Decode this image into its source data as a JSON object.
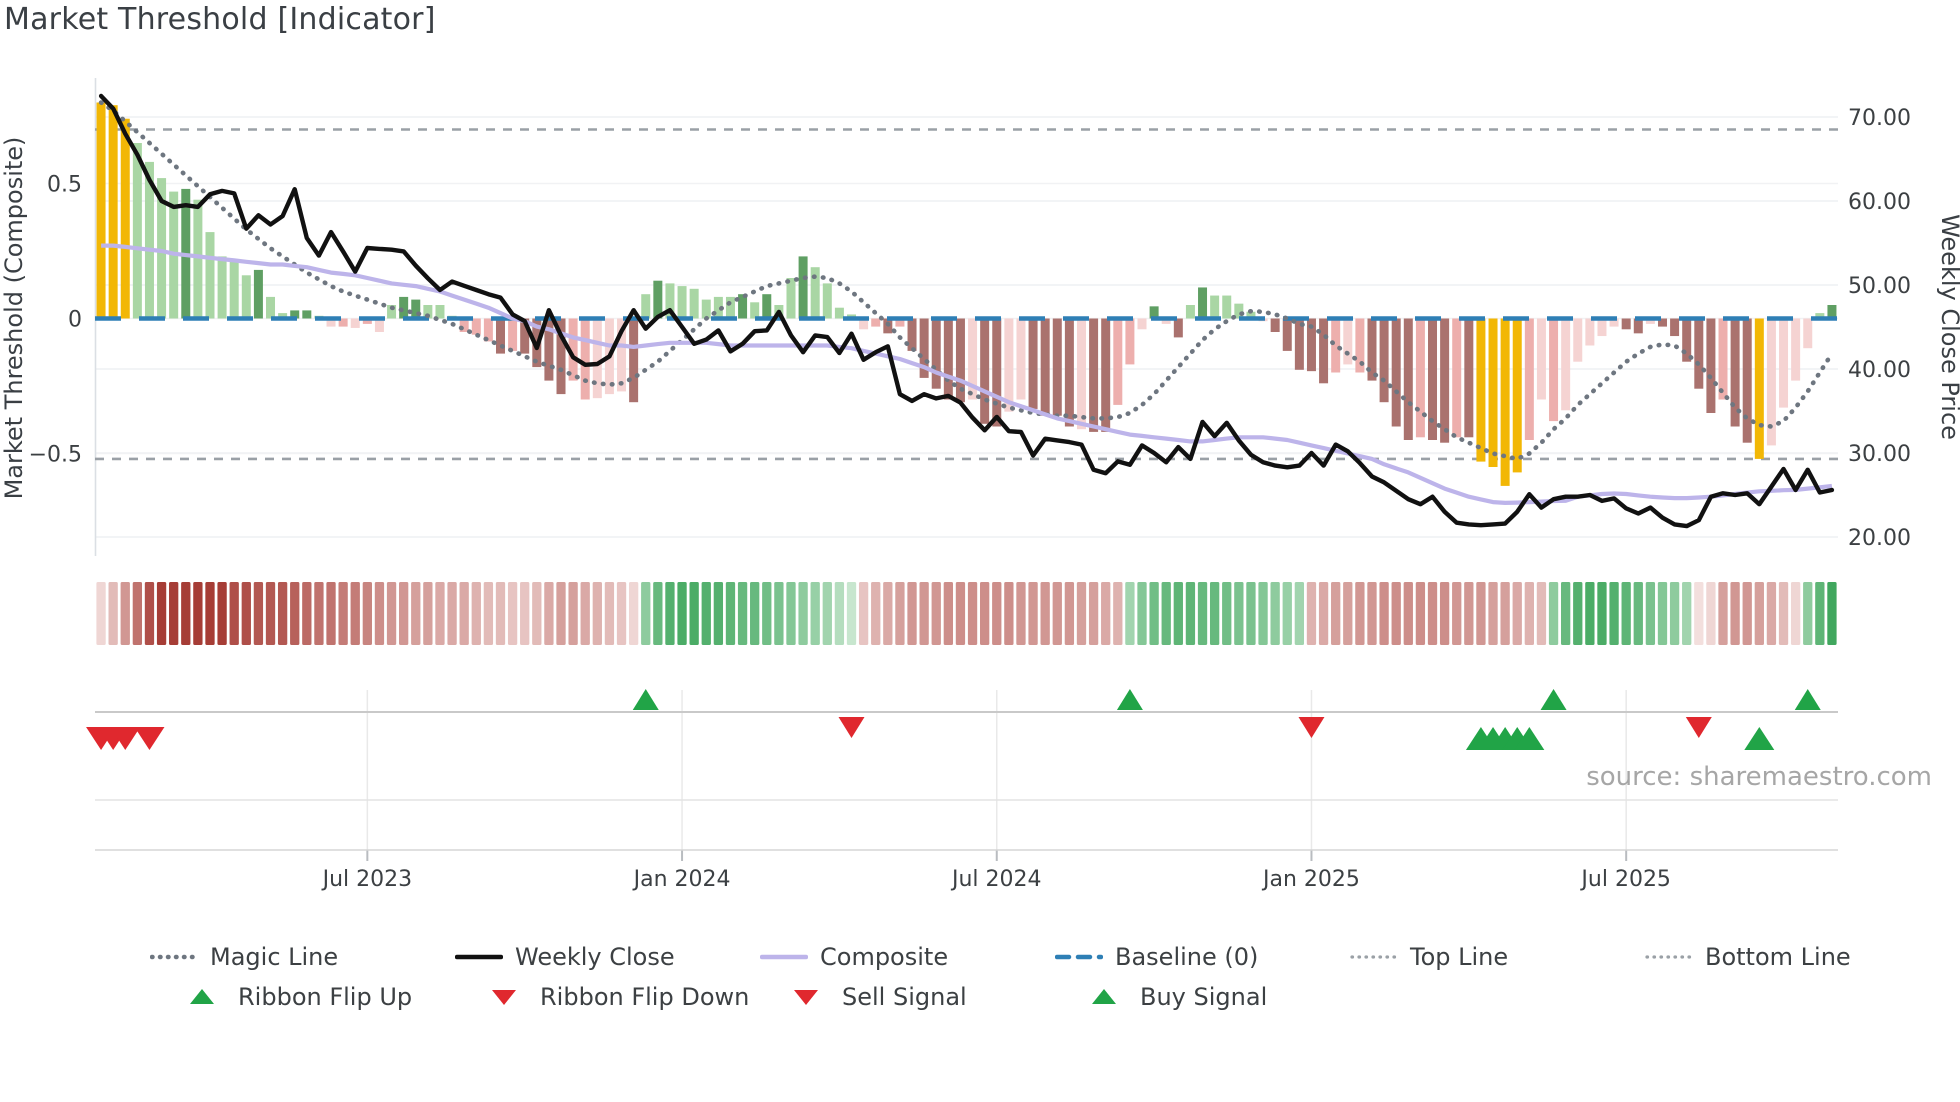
{
  "title": "Market Threshold [Indicator]",
  "source": "source: sharemaestro.com",
  "legend": {
    "row1": [
      {
        "label": "Magic Line",
        "type": "dotted",
        "color": "#6E7680"
      },
      {
        "label": "Weekly Close",
        "type": "solid",
        "color": "#111111"
      },
      {
        "label": "Composite",
        "type": "solid",
        "color": "#BDB4EA"
      },
      {
        "label": "Baseline (0)",
        "type": "dashed",
        "color": "#2E7FB5"
      },
      {
        "label": "Top Line",
        "type": "dotted-small",
        "color": "#9AA0A6"
      },
      {
        "label": "Bottom Line",
        "type": "dotted-small",
        "color": "#9AA0A6"
      }
    ],
    "row2": [
      {
        "label": "Ribbon Flip Up",
        "type": "tri-up",
        "color": "#21A447"
      },
      {
        "label": "Ribbon Flip Down",
        "type": "tri-down",
        "color": "#E0282E"
      },
      {
        "label": "Sell Signal",
        "type": "tri-down",
        "color": "#E0282E"
      },
      {
        "label": "Buy Signal",
        "type": "tri-up",
        "color": "#21A447"
      }
    ]
  },
  "colors": {
    "bar_yellow": "#F2B705",
    "bar_green_light": "#A9D6A4",
    "bar_green_dark": "#5F9F63",
    "bar_pink_pale": "#F5D3D2",
    "bar_pink_mid": "#EDAFAD",
    "bar_mauve_dark": "#AA726E",
    "weekly_close": "#111111",
    "composite_line": "#BDB4EA",
    "magic_line": "#6E7680",
    "baseline": "#2E7FB5",
    "threshold_line": "#9AA0A6",
    "signal_up": "#21A447",
    "signal_down": "#E0282E",
    "ribbon_red_min": "#FCF1F0",
    "ribbon_red_max": "#A63D36",
    "ribbon_green_min": "#EDF8EE",
    "ribbon_green_max": "#2E9E4E"
  },
  "chart_data": {
    "type": "bar+line",
    "interval": "weekly",
    "weeks": 144,
    "baseline": 0,
    "top_line": 0.7,
    "bottom_line": -0.52,
    "left_axis": {
      "label": "Market Threshold (Composite)",
      "ticks": [
        0.5,
        0,
        -0.5
      ],
      "tick_labels": [
        "0.5",
        "0",
        "−0.5"
      ],
      "range": [
        -0.9,
        0.9
      ]
    },
    "right_axis": {
      "label": "Weekly Close Price",
      "ticks": [
        70,
        60,
        50,
        40,
        30,
        20
      ],
      "tick_labels": [
        "70.00",
        "60.00",
        "50.00",
        "40.00",
        "30.00",
        "20.00"
      ]
    },
    "x_ticks": [
      {
        "label": "Jul 2023",
        "week": 22
      },
      {
        "label": "Jan 2024",
        "week": 48
      },
      {
        "label": "Jul 2024",
        "week": 74
      },
      {
        "label": "Jan 2025",
        "week": 100
      },
      {
        "label": "Jul 2025",
        "week": 126
      }
    ],
    "composite_bars": {
      "values": [
        0.8,
        0.79,
        0.74,
        0.65,
        0.58,
        0.52,
        0.47,
        0.48,
        0.44,
        0.32,
        0.23,
        0.22,
        0.16,
        0.18,
        0.08,
        0.02,
        0.03,
        0.03,
        0.01,
        -0.03,
        -0.03,
        -0.035,
        -0.02,
        -0.05,
        0.05,
        0.08,
        0.07,
        0.05,
        0.05,
        0.01,
        -0.05,
        -0.06,
        -0.085,
        -0.13,
        -0.12,
        -0.13,
        -0.18,
        -0.23,
        -0.28,
        -0.23,
        -0.3,
        -0.295,
        -0.28,
        -0.27,
        -0.31,
        0.09,
        0.14,
        0.13,
        0.12,
        0.11,
        0.07,
        0.08,
        0.08,
        0.09,
        0.06,
        0.09,
        0.05,
        0.15,
        0.23,
        0.19,
        0.13,
        0.04,
        0.015,
        -0.04,
        -0.03,
        -0.055,
        -0.03,
        -0.12,
        -0.22,
        -0.26,
        -0.3,
        -0.31,
        -0.3,
        -0.39,
        -0.4,
        -0.345,
        -0.3,
        -0.335,
        -0.36,
        -0.36,
        -0.4,
        -0.41,
        -0.42,
        -0.42,
        -0.32,
        -0.17,
        -0.04,
        0.045,
        -0.02,
        -0.07,
        0.05,
        0.115,
        0.085,
        0.085,
        0.055,
        0.025,
        -0.01,
        -0.05,
        -0.12,
        -0.19,
        -0.195,
        -0.24,
        -0.2,
        -0.17,
        -0.2,
        -0.23,
        -0.31,
        -0.4,
        -0.45,
        -0.44,
        -0.45,
        -0.46,
        -0.44,
        -0.44,
        -0.53,
        -0.55,
        -0.62,
        -0.57,
        -0.45,
        -0.3,
        -0.38,
        -0.34,
        -0.16,
        -0.1,
        -0.065,
        -0.03,
        -0.04,
        -0.055,
        -0.02,
        -0.03,
        -0.065,
        -0.16,
        -0.26,
        -0.35,
        -0.3,
        -0.4,
        -0.46,
        -0.52,
        -0.47,
        -0.33,
        -0.23,
        -0.11,
        0.02,
        0.05
      ],
      "shades": [
        "Y",
        "Y",
        "Y",
        "l",
        "l",
        "l",
        "l",
        "d",
        "l",
        "l",
        "l",
        "l",
        "l",
        "d",
        "l",
        "l",
        "d",
        "d",
        "l",
        "P",
        "M",
        "P",
        "M",
        "P",
        "l",
        "d",
        "d",
        "l",
        "l",
        "l",
        "M",
        "M",
        "M",
        "D",
        "M",
        "D",
        "D",
        "D",
        "D",
        "M",
        "M",
        "P",
        "P",
        "P",
        "D",
        "l",
        "d",
        "l",
        "l",
        "l",
        "l",
        "l",
        "l",
        "d",
        "l",
        "d",
        "l",
        "l",
        "d",
        "l",
        "l",
        "l",
        "l",
        "P",
        "M",
        "D",
        "M",
        "D",
        "D",
        "D",
        "D",
        "D",
        "P",
        "D",
        "D",
        "P",
        "P",
        "D",
        "D",
        "D",
        "D",
        "P",
        "D",
        "D",
        "M",
        "M",
        "P",
        "d",
        "P",
        "D",
        "l",
        "d",
        "l",
        "l",
        "l",
        "l",
        "P",
        "D",
        "D",
        "D",
        "D",
        "D",
        "M",
        "P",
        "M",
        "D",
        "D",
        "D",
        "D",
        "M",
        "D",
        "D",
        "M",
        "D",
        "Y",
        "Y",
        "Y",
        "Y",
        "M",
        "P",
        "M",
        "P",
        "P",
        "P",
        "P",
        "P",
        "D",
        "D",
        "P",
        "D",
        "D",
        "D",
        "D",
        "D",
        "M",
        "D",
        "D",
        "Y",
        "P",
        "P",
        "P",
        "P",
        "l",
        "d"
      ]
    },
    "weekly_close": [
      72.5,
      71.0,
      68.0,
      65.5,
      62.5,
      60.0,
      59.3,
      59.5,
      59.3,
      60.8,
      61.2,
      60.9,
      56.7,
      58.3,
      57.2,
      58.2,
      61.4,
      55.6,
      53.5,
      56.3,
      54.0,
      51.6,
      54.4,
      54.3,
      54.2,
      54.0,
      52.3,
      50.8,
      49.4,
      50.4,
      49.9,
      49.4,
      48.9,
      48.5,
      46.5,
      45.7,
      42.5,
      47.0,
      44.0,
      41.4,
      40.5,
      40.6,
      41.5,
      44.5,
      47.0,
      44.8,
      46.2,
      47.0,
      45.0,
      43.0,
      43.5,
      44.6,
      42.1,
      43.0,
      44.5,
      44.6,
      46.8,
      44.0,
      42.0,
      44.0,
      43.8,
      41.9,
      44.2,
      41.1,
      42.0,
      42.7,
      37.0,
      36.2,
      37.0,
      36.5,
      36.8,
      36.0,
      34.2,
      32.7,
      34.3,
      32.6,
      32.5,
      29.7,
      31.7,
      31.5,
      31.3,
      31.0,
      28.0,
      27.6,
      29.0,
      28.6,
      30.9,
      30.0,
      28.9,
      30.7,
      29.3,
      33.7,
      32.0,
      33.6,
      31.5,
      29.8,
      28.9,
      28.5,
      28.3,
      28.5,
      30.0,
      28.5,
      31.0,
      30.2,
      28.8,
      27.2,
      26.5,
      25.5,
      24.5,
      23.9,
      24.8,
      23.0,
      21.7,
      21.5,
      21.4,
      21.5,
      21.6,
      23.0,
      25.1,
      23.5,
      24.5,
      24.8,
      24.8,
      25.0,
      24.3,
      24.6,
      23.4,
      22.8,
      23.5,
      22.3,
      21.5,
      21.3,
      22.0,
      24.8,
      25.2,
      25.0,
      25.2,
      23.9,
      26.0,
      28.1,
      25.6,
      28.0,
      25.3,
      25.6
    ],
    "composite_line": [
      0.27,
      0.27,
      0.265,
      0.26,
      0.255,
      0.25,
      0.24,
      0.235,
      0.23,
      0.225,
      0.22,
      0.215,
      0.21,
      0.205,
      0.2,
      0.2,
      0.195,
      0.19,
      0.18,
      0.17,
      0.165,
      0.16,
      0.15,
      0.14,
      0.13,
      0.125,
      0.12,
      0.11,
      0.1,
      0.085,
      0.07,
      0.055,
      0.04,
      0.02,
      0.0,
      -0.01,
      -0.03,
      -0.04,
      -0.055,
      -0.07,
      -0.08,
      -0.09,
      -0.1,
      -0.1,
      -0.105,
      -0.1,
      -0.095,
      -0.09,
      -0.09,
      -0.09,
      -0.09,
      -0.095,
      -0.1,
      -0.1,
      -0.1,
      -0.1,
      -0.1,
      -0.1,
      -0.1,
      -0.1,
      -0.1,
      -0.105,
      -0.11,
      -0.12,
      -0.13,
      -0.14,
      -0.15,
      -0.165,
      -0.18,
      -0.2,
      -0.215,
      -0.23,
      -0.25,
      -0.27,
      -0.29,
      -0.31,
      -0.325,
      -0.34,
      -0.355,
      -0.37,
      -0.38,
      -0.39,
      -0.4,
      -0.41,
      -0.42,
      -0.43,
      -0.435,
      -0.44,
      -0.445,
      -0.45,
      -0.455,
      -0.455,
      -0.45,
      -0.445,
      -0.44,
      -0.44,
      -0.44,
      -0.445,
      -0.45,
      -0.46,
      -0.47,
      -0.48,
      -0.49,
      -0.5,
      -0.51,
      -0.52,
      -0.54,
      -0.555,
      -0.57,
      -0.59,
      -0.61,
      -0.63,
      -0.645,
      -0.66,
      -0.67,
      -0.68,
      -0.683,
      -0.682,
      -0.68,
      -0.678,
      -0.676,
      -0.675,
      -0.66,
      -0.655,
      -0.65,
      -0.648,
      -0.65,
      -0.655,
      -0.66,
      -0.663,
      -0.665,
      -0.665,
      -0.663,
      -0.66,
      -0.655,
      -0.65,
      -0.645,
      -0.64,
      -0.638,
      -0.636,
      -0.635,
      -0.63,
      -0.625,
      -0.62
    ],
    "magic_line": [
      0.8,
      0.77,
      0.73,
      0.69,
      0.65,
      0.61,
      0.57,
      0.53,
      0.49,
      0.45,
      0.41,
      0.37,
      0.33,
      0.295,
      0.26,
      0.23,
      0.2,
      0.17,
      0.145,
      0.12,
      0.1,
      0.085,
      0.07,
      0.055,
      0.04,
      0.03,
      0.02,
      0.01,
      -0.005,
      -0.02,
      -0.04,
      -0.06,
      -0.08,
      -0.1,
      -0.12,
      -0.14,
      -0.16,
      -0.175,
      -0.19,
      -0.21,
      -0.23,
      -0.24,
      -0.245,
      -0.24,
      -0.22,
      -0.19,
      -0.16,
      -0.12,
      -0.08,
      -0.04,
      0.0,
      0.03,
      0.06,
      0.08,
      0.1,
      0.12,
      0.13,
      0.14,
      0.15,
      0.155,
      0.15,
      0.13,
      0.1,
      0.06,
      0.02,
      -0.02,
      -0.07,
      -0.11,
      -0.15,
      -0.19,
      -0.23,
      -0.26,
      -0.28,
      -0.3,
      -0.315,
      -0.33,
      -0.34,
      -0.35,
      -0.355,
      -0.36,
      -0.36,
      -0.365,
      -0.37,
      -0.37,
      -0.365,
      -0.35,
      -0.32,
      -0.28,
      -0.23,
      -0.18,
      -0.13,
      -0.08,
      -0.04,
      -0.01,
      0.015,
      0.027,
      0.025,
      0.015,
      0.0,
      -0.02,
      -0.03,
      -0.06,
      -0.1,
      -0.13,
      -0.16,
      -0.2,
      -0.23,
      -0.27,
      -0.31,
      -0.345,
      -0.38,
      -0.41,
      -0.44,
      -0.46,
      -0.48,
      -0.5,
      -0.51,
      -0.52,
      -0.5,
      -0.46,
      -0.41,
      -0.37,
      -0.32,
      -0.28,
      -0.24,
      -0.2,
      -0.16,
      -0.13,
      -0.105,
      -0.096,
      -0.1,
      -0.13,
      -0.17,
      -0.22,
      -0.275,
      -0.33,
      -0.37,
      -0.395,
      -0.4,
      -0.38,
      -0.33,
      -0.27,
      -0.2,
      -0.13
    ],
    "ribbon": [
      -0.15,
      -0.3,
      -0.5,
      -0.7,
      -0.9,
      -1.0,
      -1.0,
      -1.0,
      -1.0,
      -1.0,
      -1.0,
      -0.9,
      -0.9,
      -0.85,
      -0.85,
      -0.85,
      -0.8,
      -0.75,
      -0.7,
      -0.7,
      -0.65,
      -0.65,
      -0.6,
      -0.55,
      -0.5,
      -0.5,
      -0.45,
      -0.45,
      -0.4,
      -0.4,
      -0.4,
      -0.35,
      -0.3,
      -0.3,
      -0.25,
      -0.25,
      -0.3,
      -0.4,
      -0.45,
      -0.45,
      -0.4,
      -0.35,
      -0.3,
      -0.25,
      -0.15,
      0.5,
      0.7,
      0.8,
      0.85,
      0.85,
      0.8,
      0.8,
      0.75,
      0.7,
      0.7,
      0.65,
      0.6,
      0.55,
      0.5,
      0.45,
      0.4,
      0.3,
      0.2,
      -0.25,
      -0.35,
      -0.4,
      -0.45,
      -0.5,
      -0.5,
      -0.5,
      -0.55,
      -0.55,
      -0.55,
      -0.55,
      -0.55,
      -0.55,
      -0.5,
      -0.5,
      -0.5,
      -0.5,
      -0.5,
      -0.45,
      -0.45,
      -0.4,
      -0.35,
      0.4,
      0.55,
      0.65,
      0.7,
      0.75,
      0.75,
      0.7,
      0.7,
      0.65,
      0.6,
      0.6,
      0.55,
      0.5,
      0.45,
      0.4,
      -0.35,
      -0.4,
      -0.45,
      -0.45,
      -0.5,
      -0.5,
      -0.55,
      -0.55,
      -0.55,
      -0.55,
      -0.55,
      -0.55,
      -0.5,
      -0.5,
      -0.5,
      -0.45,
      -0.45,
      -0.4,
      -0.35,
      -0.3,
      0.5,
      0.7,
      0.8,
      0.85,
      0.85,
      0.8,
      0.75,
      0.7,
      0.6,
      0.55,
      0.5,
      0.4,
      -0.1,
      -0.15,
      -0.45,
      -0.5,
      -0.5,
      -0.45,
      -0.4,
      -0.3,
      -0.15,
      0.5,
      0.75,
      0.9
    ],
    "signals": {
      "ribbon_flip_up": [
        45,
        85,
        120,
        141
      ],
      "ribbon_flip_down": [
        62,
        100,
        132
      ],
      "sell": [
        0,
        1,
        2,
        4
      ],
      "buy": [
        114,
        115,
        116,
        117,
        118,
        137
      ]
    }
  }
}
